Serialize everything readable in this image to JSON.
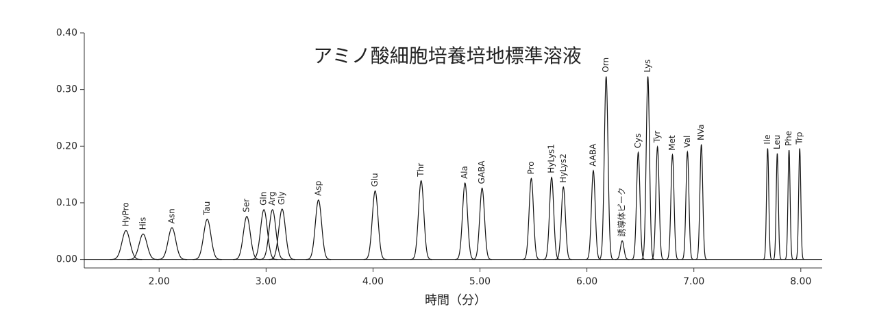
{
  "chart_data": {
    "type": "chromatogram",
    "title": "アミノ酸細胞培養培地標準溶液",
    "x_label": "時間（分）",
    "xlim": [
      1.3,
      8.2
    ],
    "ylim": [
      -0.015,
      0.4
    ],
    "xticks": [
      {
        "value": 2,
        "label": "2.00"
      },
      {
        "value": 3,
        "label": "3.00"
      },
      {
        "value": 4,
        "label": "4.00"
      },
      {
        "value": 5,
        "label": "5.00"
      },
      {
        "value": 6,
        "label": "6.00"
      },
      {
        "value": 7,
        "label": "7.00"
      },
      {
        "value": 8,
        "label": "8.00"
      }
    ],
    "yticks": [
      {
        "value": 0,
        "label": "0.00"
      },
      {
        "value": 0.1,
        "label": "0.10"
      },
      {
        "value": 0.2,
        "label": "0.20"
      },
      {
        "value": 0.3,
        "label": "0.30"
      },
      {
        "value": 0.4,
        "label": "0.40"
      }
    ],
    "color": "#111111",
    "labels": [
      "HyPro",
      "His",
      "Asn",
      "Tau",
      "Ser",
      "Gln",
      "Arg",
      "Gly",
      "Asp",
      "Glu",
      "Thr",
      "Ala",
      "GABA",
      "Pro",
      "HyLys1",
      "HyLys2",
      "AABA",
      "Orn",
      "誘導体ピーク",
      "Cys",
      "Lys",
      "Tyr",
      "Met",
      "Val",
      "NVa",
      "Ile",
      "Leu",
      "Phe",
      "Trp"
    ],
    "x": [
      1.69,
      1.85,
      2.12,
      2.45,
      2.82,
      2.98,
      3.06,
      3.15,
      3.49,
      4.02,
      4.45,
      4.86,
      5.02,
      5.48,
      5.67,
      5.78,
      6.06,
      6.18,
      6.33,
      6.48,
      6.57,
      6.66,
      6.8,
      6.94,
      7.07,
      7.69,
      7.78,
      7.89,
      7.99
    ],
    "values": [
      0.051,
      0.045,
      0.056,
      0.071,
      0.076,
      0.088,
      0.088,
      0.089,
      0.105,
      0.121,
      0.139,
      0.135,
      0.126,
      0.143,
      0.145,
      0.128,
      0.157,
      0.323,
      0.033,
      0.189,
      0.323,
      0.199,
      0.185,
      0.19,
      0.203,
      0.196,
      0.187,
      0.193,
      0.196
    ]
  }
}
